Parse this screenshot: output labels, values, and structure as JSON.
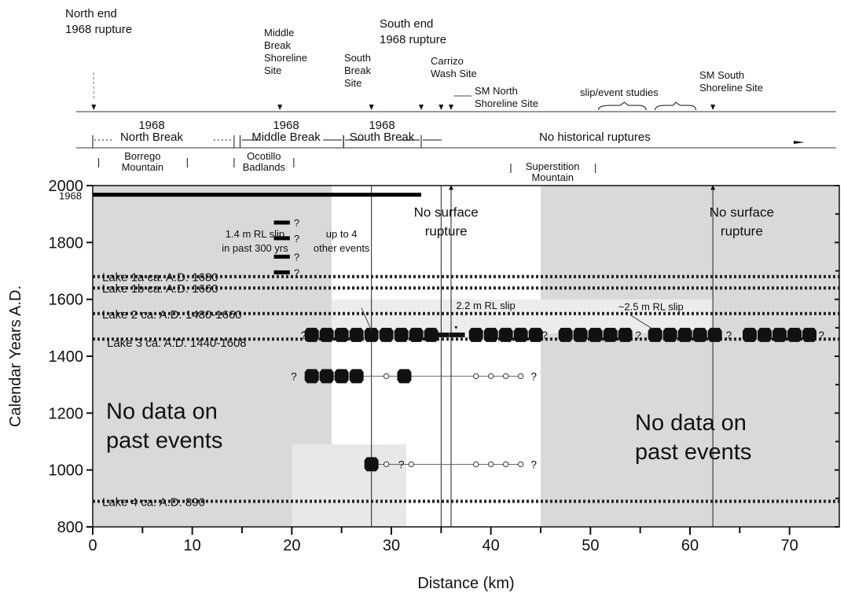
{
  "chart_data": {
    "type": "scatter",
    "xlabel": "Distance (km)",
    "ylabel": "Calendar Years A.D.",
    "xlim": [
      0,
      75
    ],
    "ylim": [
      800,
      2000
    ],
    "xticks": [
      0,
      10,
      20,
      30,
      40,
      50,
      60,
      70
    ],
    "yticks": [
      800,
      1000,
      1200,
      1400,
      1600,
      1800,
      2000
    ],
    "vertical_lines_km": [
      28,
      35,
      36,
      62.3
    ],
    "sites": [
      {
        "lines": [
          "North end",
          "1968 rupture"
        ],
        "km": 0.1
      },
      {
        "lines": [
          "Middle",
          "Break",
          "Shoreline",
          "Site"
        ],
        "km": 18.8
      },
      {
        "lines": [
          "South",
          "Break",
          "Site"
        ],
        "km": 28
      },
      {
        "lines": [
          "South end",
          "1968 rupture"
        ],
        "km": 33
      },
      {
        "lines": [
          "Carrizo",
          "Wash Site"
        ],
        "km": 35
      },
      {
        "lines": [
          "SM North",
          "Shoreline Site"
        ],
        "km": 36
      },
      {
        "lines": [
          "slip/event studies"
        ],
        "km": 53
      },
      {
        "lines": [
          "SM South",
          "Shoreline Site"
        ],
        "km": 62.3
      }
    ],
    "rupture_segments": [
      {
        "lines": [
          "1968",
          "North Break"
        ],
        "start_km": 0,
        "end_km": 14.2
      },
      {
        "lines": [
          "1968",
          "Middle Break"
        ],
        "start_km": 14.8,
        "end_km": 25.2
      },
      {
        "lines": [
          "1968",
          "South Break"
        ],
        "start_km": 25.2,
        "end_km": 33
      },
      {
        "lines": [
          "No historical ruptures"
        ],
        "start_km": 33,
        "end_km": 75
      }
    ],
    "regions": [
      {
        "lines": [
          "Borrego",
          "Mountain"
        ],
        "start_km": 0.6,
        "end_km": 9.5
      },
      {
        "lines": [
          "Ocotillo",
          "Badlands"
        ],
        "start_km": 14.2,
        "end_km": 20.2
      },
      {
        "lines": [
          "Superstition",
          "Mountain"
        ],
        "start_km": 42,
        "end_km": 50.5
      }
    ],
    "rupture_1968": {
      "label": "1968",
      "start_km": 0,
      "end_km": 33,
      "year": 1968
    },
    "lake_levels": [
      {
        "label": "Lake 1a ca. A.D. 1680",
        "year": 1680
      },
      {
        "label": "Lake 1b ca. A.D. 1660",
        "year": 1660
      },
      {
        "label": "Lake 2 ca. A.D. 1480-1660",
        "year": 1550
      },
      {
        "label": "Lake 3 ca. A.D. 1440-1608",
        "year": 1460
      },
      {
        "label": "Lake 4 ca. A.D. 890",
        "year": 890
      }
    ],
    "event_rows": [
      {
        "year": 1475,
        "points_km": [
          22,
          23.5,
          25,
          26.5,
          28,
          29.5,
          31,
          32.5,
          34,
          38.5,
          40,
          41.5,
          43,
          44.5,
          47.5,
          49,
          50.5,
          52,
          53.5,
          56.5,
          58,
          59.5,
          61,
          62.5,
          66,
          67.5,
          69,
          70.5,
          72
        ],
        "dashes_km": [
          35,
          36.6
        ]
      },
      {
        "year": 1330,
        "points_km": [
          22,
          23.5,
          25,
          26.5,
          31.3
        ],
        "open_km": [
          29.5,
          38.5,
          40,
          41.5,
          43
        ]
      },
      {
        "year": 1020,
        "points_km": [
          28
        ],
        "open_km": [
          29.5,
          32,
          38.5,
          40,
          41.5,
          43
        ]
      }
    ],
    "slip_ticks": [
      1870,
      1815,
      1750,
      1695
    ],
    "annotations": {
      "no_rupture_1": [
        "No surface",
        "rupture"
      ],
      "no_rupture_2": [
        "No surface",
        "rupture"
      ],
      "no_data_1": [
        "No data on",
        "past events"
      ],
      "no_data_2": [
        "No data on",
        "past events"
      ],
      "slip_1": [
        "1.4 m RL slip",
        "in past 300 yrs"
      ],
      "other_events": [
        "up to 4",
        "other events"
      ],
      "slip_2": "2.2 m RL slip",
      "slip_3": "~2.5 m RL slip",
      "q": "?"
    },
    "shaded_km": [
      [
        0,
        24
      ],
      [
        45,
        75
      ]
    ]
  }
}
